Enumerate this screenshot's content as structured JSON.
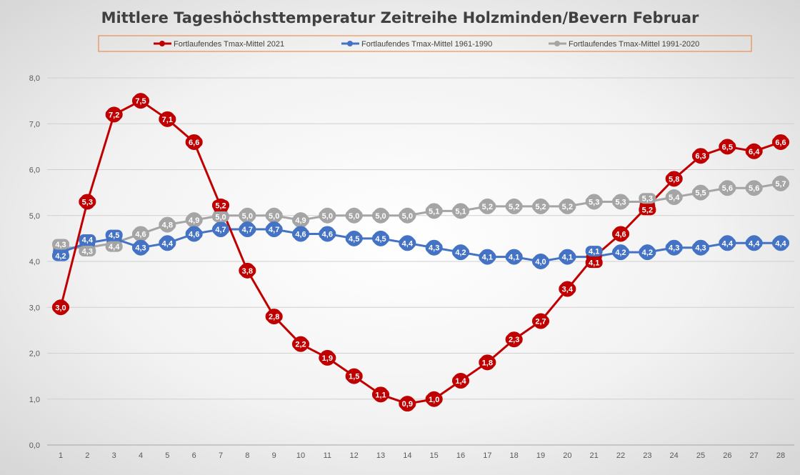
{
  "chart_data": {
    "type": "line",
    "title": "Mittlere Tageshöchsttemperatur Zeitreihe Holzminden/Bevern Februar",
    "xlabel": "",
    "ylabel": "",
    "x": [
      1,
      2,
      3,
      4,
      5,
      6,
      7,
      8,
      9,
      10,
      11,
      12,
      13,
      14,
      15,
      16,
      17,
      18,
      19,
      20,
      21,
      22,
      23,
      24,
      25,
      26,
      27,
      28
    ],
    "ylim": [
      0,
      8
    ],
    "yticks": [
      "0,0",
      "1,0",
      "2,0",
      "3,0",
      "4,0",
      "5,0",
      "6,0",
      "7,0",
      "8,0"
    ],
    "grid": true,
    "legend_position": "top",
    "series": [
      {
        "name": "Fortlaufendes Tmax-Mittel 1991-2020",
        "color": "#a5a5a5",
        "values": [
          4.3,
          4.3,
          4.4,
          4.6,
          4.8,
          4.9,
          5.0,
          5.0,
          5.0,
          4.9,
          5.0,
          5.0,
          5.0,
          5.0,
          5.1,
          5.1,
          5.2,
          5.2,
          5.2,
          5.2,
          5.3,
          5.3,
          5.3,
          5.4,
          5.5,
          5.6,
          5.6,
          5.7
        ]
      },
      {
        "name": "Fortlaufendes Tmax-Mittel 1961-1990",
        "color": "#4472c4",
        "values": [
          4.2,
          4.4,
          4.5,
          4.3,
          4.4,
          4.6,
          4.7,
          4.7,
          4.7,
          4.6,
          4.6,
          4.5,
          4.5,
          4.4,
          4.3,
          4.2,
          4.1,
          4.1,
          4.0,
          4.1,
          4.1,
          4.2,
          4.2,
          4.3,
          4.3,
          4.4,
          4.4,
          4.4
        ]
      },
      {
        "name": "Fortlaufendes Tmax-Mittel 2021",
        "color": "#c00000",
        "values": [
          3.0,
          5.3,
          7.2,
          7.5,
          7.1,
          6.6,
          5.2,
          3.8,
          2.8,
          2.2,
          1.9,
          1.5,
          1.1,
          0.9,
          1.0,
          1.4,
          1.8,
          2.3,
          2.7,
          3.4,
          4.1,
          4.6,
          5.2,
          5.8,
          6.3,
          6.5,
          6.4,
          6.6
        ]
      }
    ],
    "legend_order": [
      2,
      1,
      0
    ]
  }
}
